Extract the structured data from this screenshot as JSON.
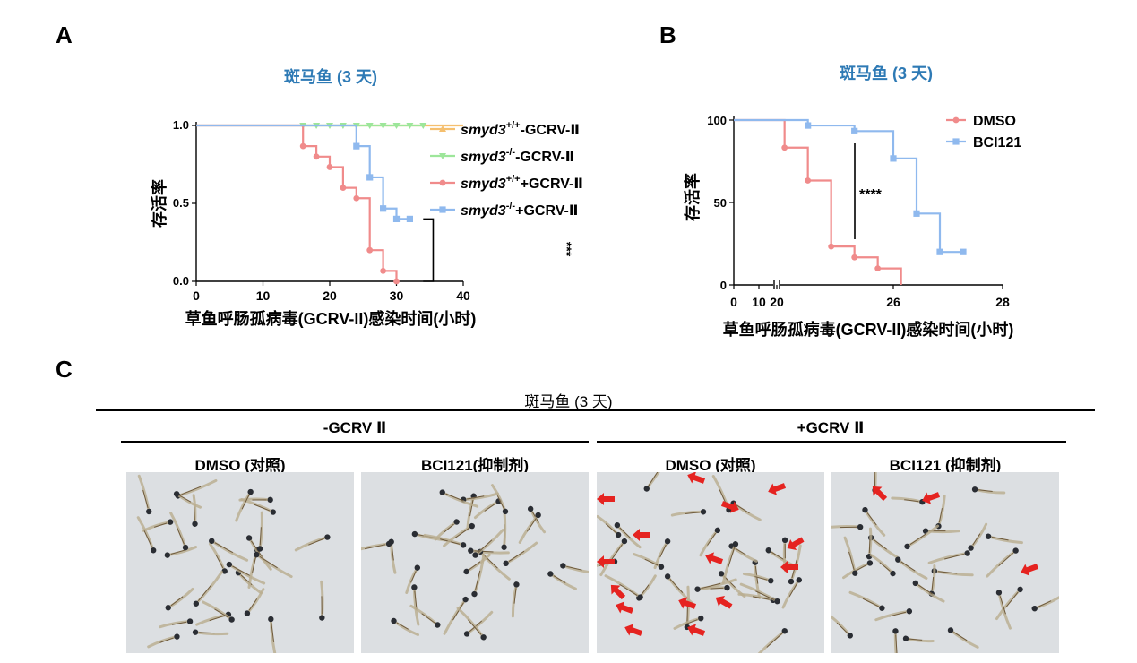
{
  "panel_labels": [
    "A",
    "B",
    "C"
  ],
  "chart_data": [
    {
      "type": "line",
      "panel": "A",
      "title": "斑马鱼 (3 天)",
      "xlabel": "草鱼呼肠孤病毒(GCRV-II)感染时间(小时)",
      "ylabel": "存活率",
      "xlim": [
        0,
        40
      ],
      "ylim": [
        0,
        1.0
      ],
      "xticks": [
        "0",
        "10",
        "20",
        "30",
        "40"
      ],
      "yticks": [
        "0.0",
        "0.5",
        "1.0"
      ],
      "legend_position": "right",
      "significance": "***",
      "series": [
        {
          "name": "smyd3+/+-GCRV-Ⅱ",
          "legend_italic": "smyd3",
          "legend_sup": "+/+",
          "legend_rest": "-GCRV-Ⅱ",
          "color": "#f5bf6e",
          "marker": "triangle",
          "x": [
            0,
            40
          ],
          "y": [
            1.0,
            1.0
          ]
        },
        {
          "name": "smyd3-/--GCRV-Ⅱ",
          "legend_italic": "smyd3",
          "legend_sup": "-/-",
          "legend_rest": "-GCRV-Ⅱ",
          "color": "#9de69a",
          "marker": "triangle-down",
          "x": [
            16,
            18,
            20,
            22,
            24,
            26,
            28,
            30,
            32,
            34
          ],
          "y": [
            1.0,
            1.0,
            1.0,
            1.0,
            1.0,
            1.0,
            1.0,
            1.0,
            1.0,
            1.0
          ]
        },
        {
          "name": "smyd3+/++GCRV-Ⅱ",
          "legend_italic": "smyd3",
          "legend_sup": "+/+",
          "legend_rest": "+GCRV-Ⅱ",
          "color": "#f08b8b",
          "marker": "circle",
          "x": [
            16,
            18,
            20,
            22,
            24,
            26,
            28,
            30
          ],
          "y": [
            0.867,
            0.8,
            0.733,
            0.6,
            0.533,
            0.2,
            0.067,
            0.0
          ]
        },
        {
          "name": "smyd3-/-+GCRV-Ⅱ",
          "legend_italic": "smyd3",
          "legend_sup": "-/-",
          "legend_rest": "+GCRV-Ⅱ",
          "color": "#8fb9ee",
          "marker": "square",
          "x": [
            24,
            26,
            28,
            30,
            32
          ],
          "y": [
            0.867,
            0.667,
            0.467,
            0.4,
            0.4
          ]
        }
      ]
    },
    {
      "type": "line",
      "panel": "B",
      "title": "斑马鱼 (3 天)",
      "xlabel": "草鱼呼肠孤病毒(GCRV-II)感染时间(小时)",
      "ylabel": "存活率",
      "ylim": [
        0,
        100
      ],
      "xticks": [
        "0",
        "10",
        "20",
        "26",
        "28"
      ],
      "yticks": [
        "0",
        "50",
        "100"
      ],
      "legend_position": "top-right",
      "significance": "****",
      "series": [
        {
          "name": "DMSO",
          "color": "#f08b8b",
          "marker": "circle",
          "x": [
            20.4,
            21.6,
            22.8,
            24.0,
            25.2,
            26.4
          ],
          "y": [
            83.3,
            63.3,
            23.3,
            16.7,
            10.0,
            0
          ]
        },
        {
          "name": "BCI121",
          "color": "#8fb9ee",
          "marker": "square",
          "x": [
            21.6,
            24.0,
            26.0,
            27.2,
            28.4,
            29.6
          ],
          "y": [
            96.7,
            93.3,
            76.7,
            43.3,
            20.0,
            20.0
          ]
        }
      ]
    }
  ],
  "panel_c": {
    "title": "斑马鱼 (3 天)",
    "groups": [
      "-GCRV Ⅱ",
      "+GCRV Ⅱ"
    ],
    "columns": [
      "DMSO (对照)",
      "BCI121(抑制剂)",
      "DMSO (对照)",
      "BCI121 (抑制剂)"
    ],
    "arrow_color": "#e52320",
    "photo_background": "#d9dcdf"
  }
}
